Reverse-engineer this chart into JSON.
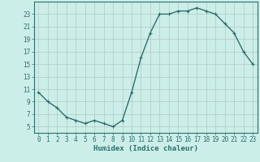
{
  "x": [
    0,
    1,
    2,
    3,
    4,
    5,
    6,
    7,
    8,
    9,
    10,
    11,
    12,
    13,
    14,
    15,
    16,
    17,
    18,
    19,
    20,
    21,
    22,
    23
  ],
  "y": [
    10.5,
    9,
    8,
    6.5,
    6,
    5.5,
    6,
    5.5,
    5,
    6,
    10.5,
    16,
    20,
    23,
    23,
    23.5,
    23.5,
    24,
    23.5,
    23,
    21.5,
    20,
    17,
    15
  ],
  "line_color": "#2d6e6e",
  "marker": "+",
  "marker_size": 3,
  "linewidth": 1.0,
  "bg_color": "#cceee8",
  "grid_color": "#b0c8c4",
  "xlabel": "Humidex (Indice chaleur)",
  "ylim": [
    4,
    25
  ],
  "xlim": [
    -0.5,
    23.5
  ],
  "yticks": [
    5,
    7,
    9,
    11,
    13,
    15,
    17,
    19,
    21,
    23
  ],
  "xticks": [
    0,
    1,
    2,
    3,
    4,
    5,
    6,
    7,
    8,
    9,
    10,
    11,
    12,
    13,
    14,
    15,
    16,
    17,
    18,
    19,
    20,
    21,
    22,
    23
  ],
  "xlabel_fontsize": 6.5,
  "tick_fontsize": 5.5,
  "tick_color": "#2d6e6e",
  "axis_color": "#2d6e6e",
  "markeredgewidth": 0.8
}
